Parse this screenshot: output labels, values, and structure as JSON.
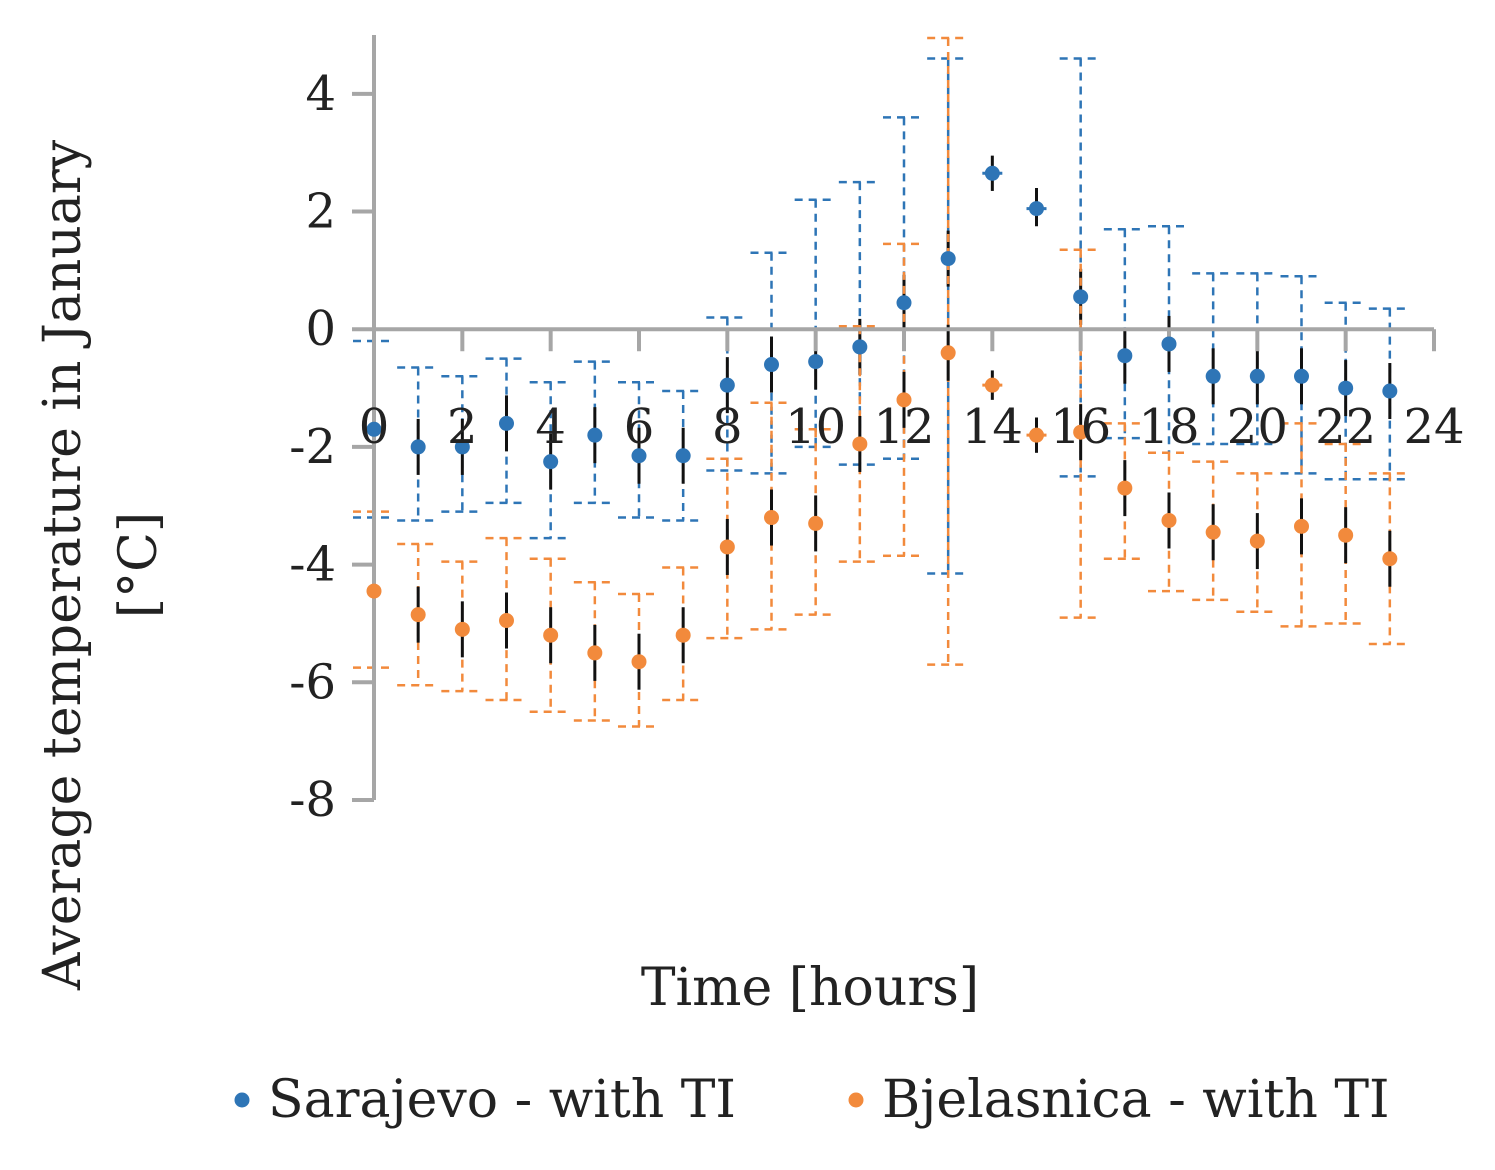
{
  "chart_data": {
    "type": "scatter",
    "title": "",
    "xlabel": "Time [hours]",
    "ylabel_lines": [
      "Average temperature in January",
      "[°C]"
    ],
    "xlim": [
      0,
      24
    ],
    "ylim": [
      -8,
      5
    ],
    "xticks": [
      0,
      2,
      4,
      6,
      8,
      10,
      12,
      14,
      16,
      18,
      20,
      22,
      24
    ],
    "xtick_labels": [
      "0",
      "2",
      "4",
      "6",
      "8",
      "10",
      "12",
      "14",
      "16",
      "18",
      "20",
      "22",
      "24"
    ],
    "yticks": [
      -8,
      -6,
      -4,
      -2,
      0,
      2,
      4
    ],
    "ytick_labels": [
      "-8",
      "-6",
      "-4",
      "-2",
      "0",
      "2",
      "4"
    ],
    "grid": false,
    "legend_position": "bottom-center",
    "series": [
      {
        "name": "Sarajevo - with TI",
        "color": "#2e75b6",
        "x": [
          0,
          1,
          2,
          3,
          4,
          5,
          6,
          7,
          8,
          9,
          10,
          11,
          12,
          13,
          14,
          15,
          16,
          17,
          18,
          19,
          20,
          21,
          22,
          23
        ],
        "y": [
          -1.7,
          -2.0,
          -2.0,
          -1.6,
          -2.25,
          -1.8,
          -2.15,
          -2.15,
          -0.95,
          -0.6,
          -0.55,
          -0.3,
          0.45,
          1.2,
          2.65,
          2.05,
          0.55,
          -0.45,
          -0.25,
          -0.8,
          -0.8,
          -0.8,
          -1.0,
          -1.05
        ],
        "err_low": [
          -3.2,
          -3.25,
          -3.1,
          -2.95,
          -3.55,
          -2.95,
          -3.2,
          -3.25,
          -2.4,
          -2.45,
          -2.0,
          -2.3,
          -2.2,
          -4.15,
          2.35,
          1.75,
          -2.5,
          -1.85,
          -2.1,
          -1.95,
          -1.95,
          -2.45,
          -2.55,
          -2.55
        ],
        "err_high": [
          -0.2,
          -0.65,
          -0.8,
          -0.5,
          -0.9,
          -0.55,
          -0.9,
          -1.05,
          0.2,
          1.3,
          2.2,
          2.5,
          3.6,
          4.6,
          2.95,
          2.4,
          4.6,
          1.7,
          1.75,
          0.95,
          0.95,
          0.9,
          0.45,
          0.35
        ],
        "error_style": [
          "dashed",
          "dashed",
          "dashed",
          "dashed",
          "dashed",
          "dashed",
          "dashed",
          "dashed",
          "dashed",
          "dashed",
          "dashed",
          "dashed",
          "dashed",
          "dashed",
          "solid",
          "solid",
          "dashed",
          "dashed",
          "dashed",
          "dashed",
          "dashed",
          "dashed",
          "dashed",
          "dashed"
        ]
      },
      {
        "name": "Bjelasnica - with TI",
        "color": "#f28a3c",
        "x": [
          0,
          1,
          2,
          3,
          4,
          5,
          6,
          7,
          8,
          9,
          10,
          11,
          12,
          13,
          14,
          15,
          16,
          17,
          18,
          19,
          20,
          21,
          22,
          23
        ],
        "y": [
          -4.45,
          -4.85,
          -5.1,
          -4.95,
          -5.2,
          -5.5,
          -5.65,
          -5.2,
          -3.7,
          -3.2,
          -3.3,
          -1.95,
          -1.2,
          -0.4,
          -0.95,
          -1.8,
          -1.75,
          -2.7,
          -3.25,
          -3.45,
          -3.6,
          -3.35,
          -3.5,
          -3.9
        ],
        "err_low": [
          -5.75,
          -6.05,
          -6.15,
          -6.3,
          -6.5,
          -6.65,
          -6.75,
          -6.3,
          -5.25,
          -5.1,
          -4.85,
          -3.95,
          -3.85,
          -5.7,
          -1.2,
          -2.1,
          -4.9,
          -3.9,
          -4.45,
          -4.6,
          -4.8,
          -5.05,
          -5.0,
          -5.35
        ],
        "err_high": [
          -3.1,
          -3.65,
          -3.95,
          -3.55,
          -3.9,
          -4.3,
          -4.5,
          -4.05,
          -2.2,
          -1.25,
          -1.7,
          0.05,
          1.45,
          4.95,
          -0.7,
          -1.5,
          1.35,
          -1.6,
          -2.1,
          -2.25,
          -2.45,
          -1.6,
          -1.95,
          -2.45
        ],
        "error_style": [
          "dashed",
          "dashed",
          "dashed",
          "dashed",
          "dashed",
          "dashed",
          "dashed",
          "dashed",
          "dashed",
          "dashed",
          "dashed",
          "dashed",
          "dashed",
          "dashed",
          "solid",
          "solid",
          "dashed",
          "dashed",
          "dashed",
          "dashed",
          "dashed",
          "dashed",
          "dashed",
          "dashed"
        ]
      }
    ]
  }
}
